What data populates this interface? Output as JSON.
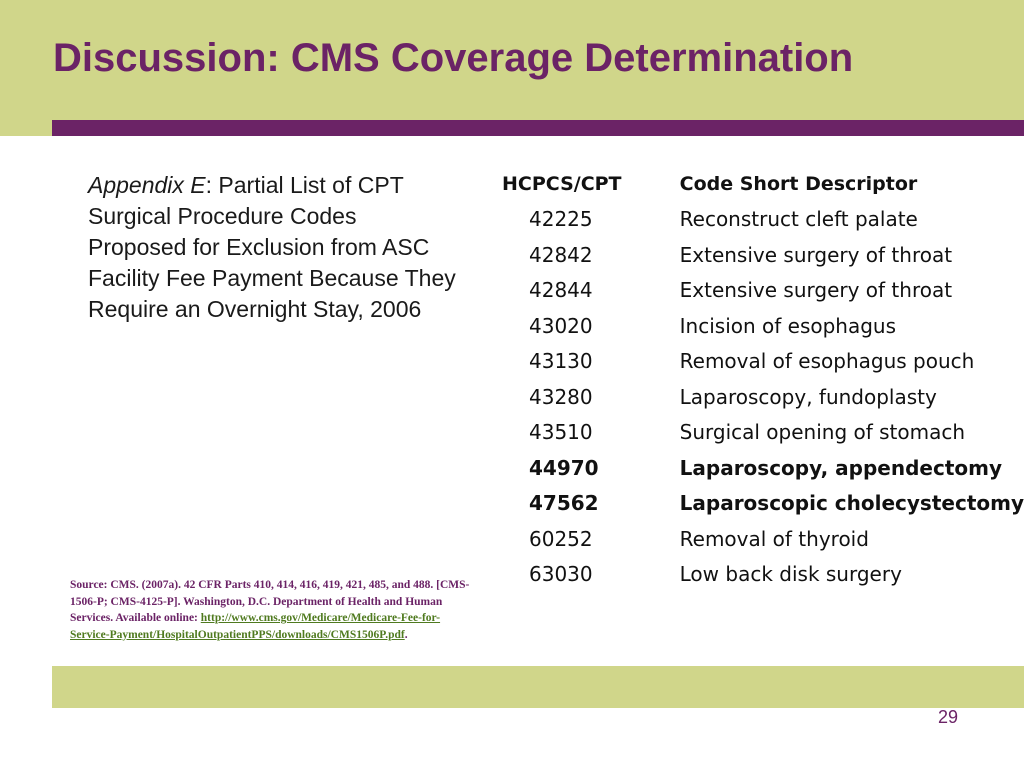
{
  "slide": {
    "title": "Discussion: CMS Coverage Determination",
    "page_number": "29",
    "colors": {
      "header_band": "#d0d68a",
      "accent": "#6b2366",
      "link": "#4f7a1f"
    }
  },
  "caption": {
    "italic_part": "Appendix E",
    "text": ": Partial List of CPT Surgical Procedure Codes Proposed for Exclusion from ASC Facility Fee Payment Because They Require an Overnight Stay, 2006"
  },
  "source": {
    "text": "Source: CMS. (2007a). 42 CFR Parts 410, 414, 416, 419, 421, 485, and 488. [CMS-1506-P; CMS-4125-P]. Washington, D.C. Department of Health and Human Services. Available online: ",
    "link_text": "http://www.cms.gov/Medicare/Medicare-Fee-for-Service-Payment/HospitalOutpatientPPS/downloads/CMS1506P.pdf",
    "trailing": "."
  },
  "table": {
    "headers": [
      "HCPCS/CPT",
      "Code Short Descriptor"
    ],
    "rows": [
      {
        "code": "42225",
        "desc": "Reconstruct cleft palate",
        "bold": false
      },
      {
        "code": "42842",
        "desc": "Extensive surgery of throat",
        "bold": false
      },
      {
        "code": "42844",
        "desc": "Extensive surgery of throat",
        "bold": false
      },
      {
        "code": "43020",
        "desc": "Incision of esophagus",
        "bold": false
      },
      {
        "code": "43130",
        "desc": "Removal of esophagus pouch",
        "bold": false
      },
      {
        "code": "43280",
        "desc": "Laparoscopy, fundoplasty",
        "bold": false
      },
      {
        "code": "43510",
        "desc": "Surgical opening of stomach",
        "bold": false
      },
      {
        "code": "44970",
        "desc": "Laparoscopy, appendectomy",
        "bold": true
      },
      {
        "code": "47562",
        "desc": "Laparoscopic cholecystectomy",
        "bold": true
      },
      {
        "code": "60252",
        "desc": "Removal of thyroid",
        "bold": false
      },
      {
        "code": "63030",
        "desc": "Low back disk surgery",
        "bold": false
      }
    ]
  }
}
